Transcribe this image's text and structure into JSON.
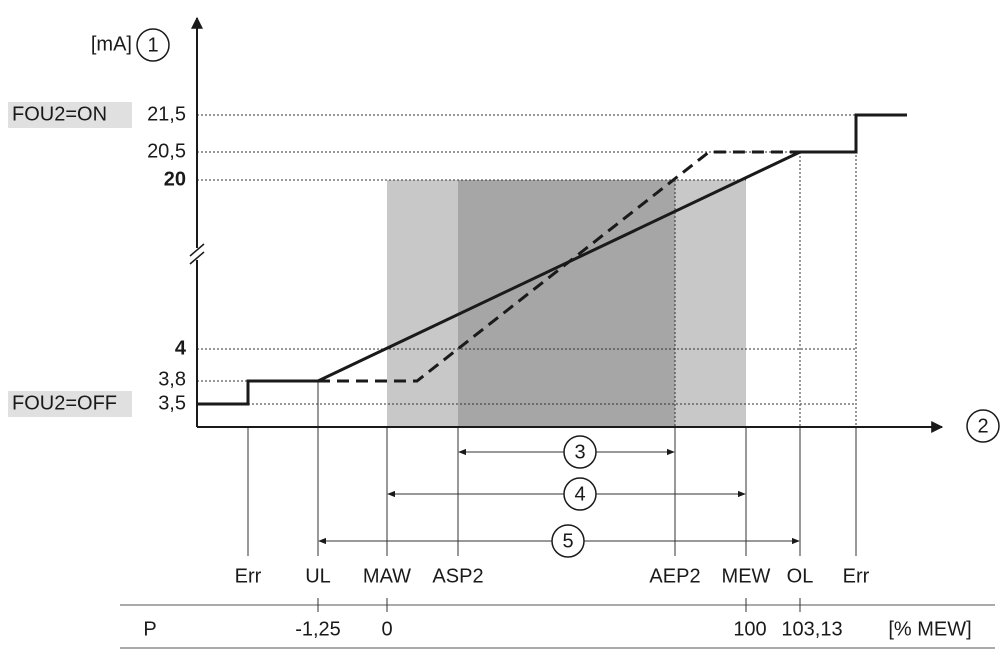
{
  "y_axis": {
    "unit": "[mA]",
    "marker": "1",
    "labels": [
      "21,5",
      "20,5",
      "20",
      "4",
      "3,8",
      "3,5"
    ],
    "states": [
      "FOU2=ON",
      "FOU2=OFF"
    ]
  },
  "x_axis": {
    "marker": "2",
    "labels": [
      "Err",
      "UL",
      "MAW",
      "ASP2",
      "AEP2",
      "MEW",
      "OL",
      "Err"
    ]
  },
  "ranges": [
    "3",
    "4",
    "5"
  ],
  "table": {
    "label": "P",
    "values": [
      "-1,25",
      "0",
      "100",
      "103,13"
    ],
    "unit": "[% MEW]"
  }
}
